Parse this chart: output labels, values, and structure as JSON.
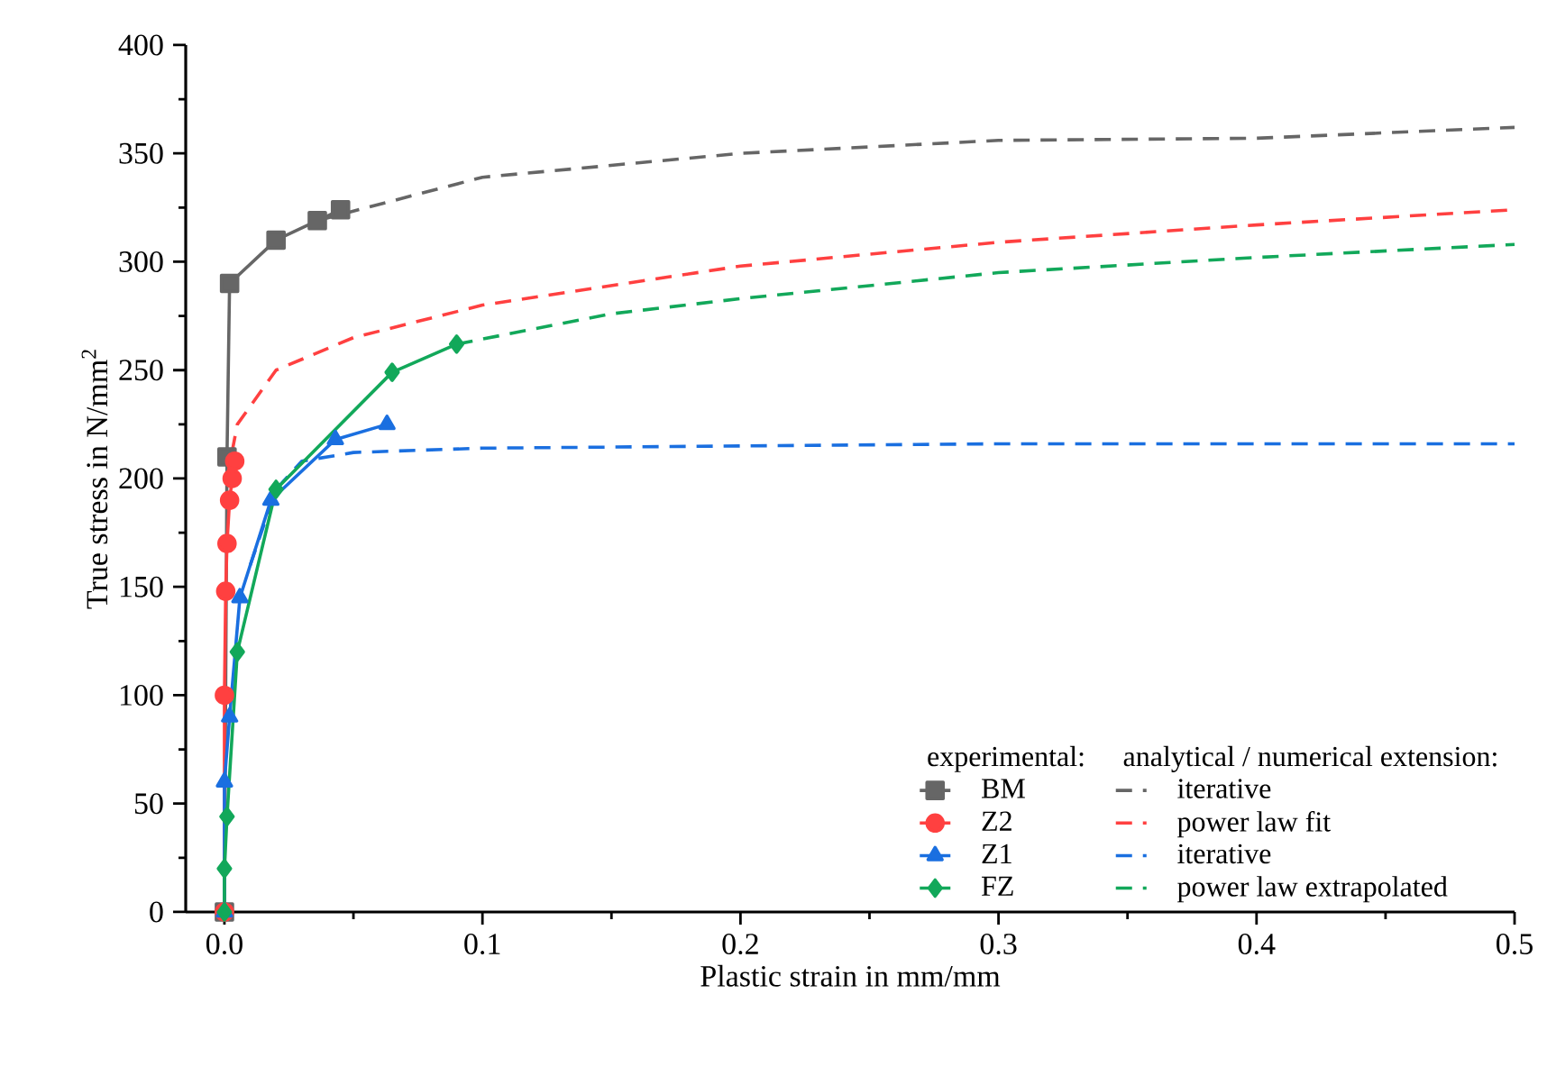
{
  "chart_data": {
    "type": "line",
    "xlabel": "Plastic strain in mm/mm",
    "ylabel": "True stress in N/mm$^{2}$",
    "legend_title": "experimental:",
    "annotations": [
      "analytical / numerical extension:"
    ],
    "xlim": [
      -0.015,
      0.5
    ],
    "ylim": [
      0,
      400
    ],
    "xticks": [
      {
        "value": 0,
        "label": "0.0"
      },
      0.1,
      0.2,
      0.3,
      0.4,
      0.5
    ],
    "yticks": [
      0,
      50,
      100,
      150,
      200,
      250,
      300,
      350,
      400
    ],
    "legend": "bottom right",
    "grid": false,
    "series": [
      {
        "name": "BM",
        "color": "#666666",
        "marker": "square",
        "line_style": "solid",
        "x": [
          0,
          0.001,
          0.002,
          0.02,
          0.036,
          0.045
        ],
        "values": [
          0,
          210,
          290,
          310,
          319,
          324
        ]
      },
      {
        "name": "iterative",
        "color": "#666666",
        "marker": "none",
        "line_style": "dashed",
        "x": [
          0.036,
          0.1,
          0.2,
          0.3,
          0.4,
          0.5
        ],
        "values": [
          319,
          339,
          350,
          356,
          357,
          362
        ]
      },
      {
        "name": "Z2",
        "color": "#ff4040",
        "marker": "circle",
        "line_style": "solid",
        "x": [
          0,
          0,
          0.0005,
          0.001,
          0.002,
          0.003,
          0.004
        ],
        "values": [
          0,
          100,
          148,
          170,
          190,
          200,
          208
        ]
      },
      {
        "name": "power law fit",
        "color": "#ff4040",
        "marker": "none",
        "line_style": "dashed",
        "x": [
          0.001,
          0.005,
          0.02,
          0.05,
          0.1,
          0.2,
          0.3,
          0.4,
          0.5
        ],
        "values": [
          200,
          225,
          250,
          265,
          280,
          298,
          309,
          317,
          324
        ]
      },
      {
        "name": "Z1",
        "color": "#1a6fe0",
        "marker": "triangle",
        "line_style": "solid",
        "x": [
          0,
          0,
          0.002,
          0.006,
          0.018,
          0.043,
          0.063
        ],
        "values": [
          0,
          60,
          90,
          145,
          190,
          218,
          225
        ]
      },
      {
        "name": "iterative",
        "color": "#1a6fe0",
        "marker": "none",
        "line_style": "dashed",
        "x": [
          0.01,
          0.02,
          0.03,
          0.05,
          0.1,
          0.3,
          0.5
        ],
        "values": [
          160,
          195,
          208,
          212,
          214,
          216,
          216
        ]
      },
      {
        "name": "FZ",
        "color": "#12a85a",
        "marker": "diamond",
        "line_style": "solid",
        "x": [
          0,
          0,
          0.001,
          0.005,
          0.02,
          0.065,
          0.09
        ],
        "values": [
          0,
          20,
          44,
          120,
          195,
          249,
          262
        ]
      },
      {
        "name": "power law extrapolated",
        "color": "#12a85a",
        "marker": "none",
        "line_style": "dashed",
        "x": [
          0.09,
          0.15,
          0.2,
          0.3,
          0.4,
          0.5
        ],
        "values": [
          262,
          276,
          283,
          295,
          302,
          308
        ]
      }
    ]
  }
}
